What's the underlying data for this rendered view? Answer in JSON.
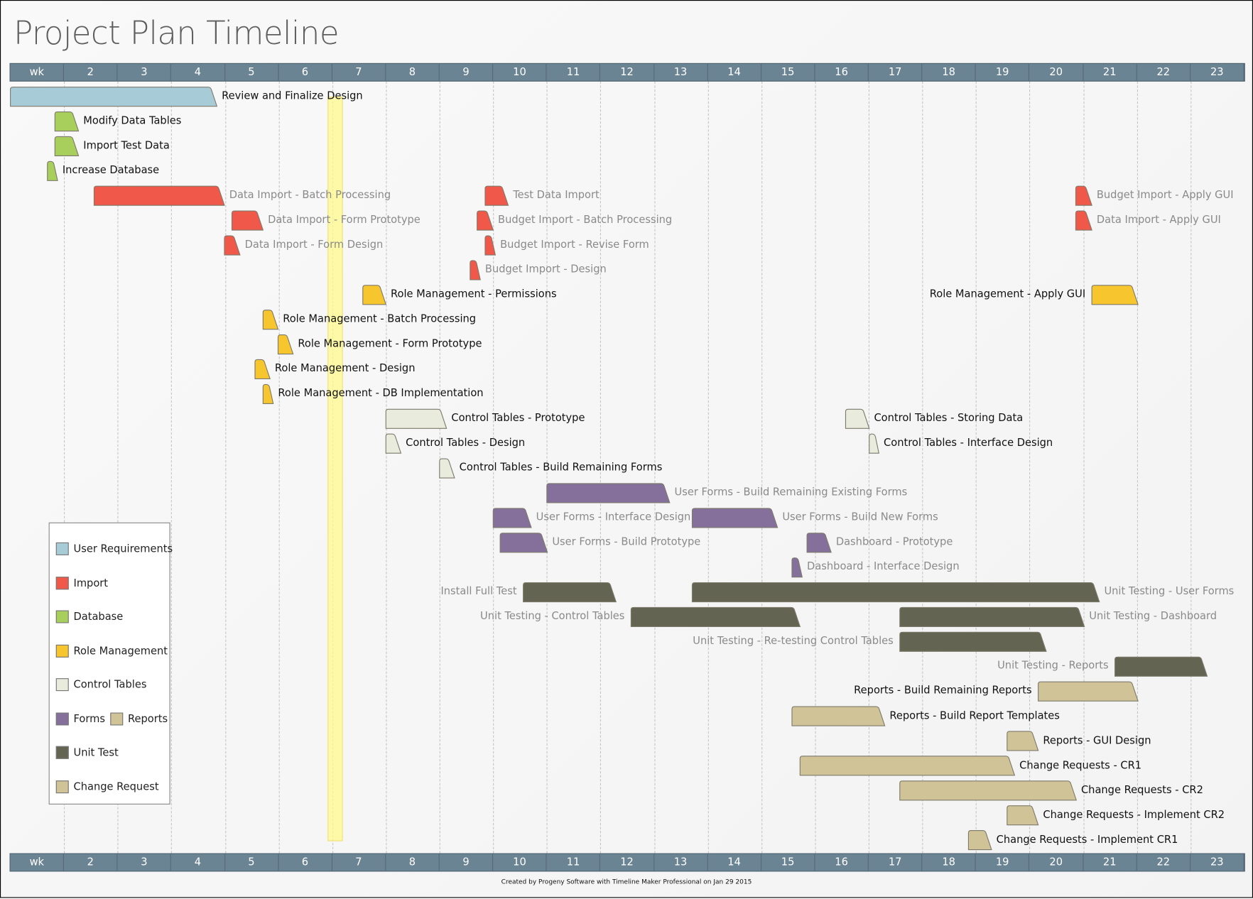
{
  "title": "Project Plan Timeline",
  "footer": "Created by Progeny Software with Timeline Maker Professional on Jan 29 2015",
  "chart_data": {
    "type": "gantt",
    "title": "Project Plan Timeline",
    "x_unit": "week",
    "x_ticks": [
      "wk",
      "2",
      "3",
      "4",
      "5",
      "6",
      "7",
      "8",
      "9",
      "10",
      "11",
      "12",
      "13",
      "14",
      "15",
      "16",
      "17",
      "18",
      "19",
      "20",
      "21",
      "22",
      "23"
    ],
    "xlim": [
      1,
      24
    ],
    "grid": true,
    "highlight_week": [
      6.92,
      7.19
    ],
    "categories": {
      "User Requirements": "#a8cbd8",
      "Import": "#f0584a",
      "Database": "#a8cf5c",
      "Role Management": "#f7c52e",
      "Control Tables": "#e9ebdd",
      "Forms": "#84709a",
      "Reports": "#cfc397",
      "Unit Test": "#636552",
      "Change Request": "#cfc397"
    },
    "tasks": [
      {
        "label": "Review and Finalize Design",
        "cat": "User Requirements",
        "row": 0,
        "start": 1.0,
        "end": 4.85,
        "side": "right",
        "muted": false
      },
      {
        "label": "Modify Data Tables",
        "cat": "Database",
        "row": 1,
        "start": 1.83,
        "end": 2.27,
        "side": "right",
        "muted": false
      },
      {
        "label": "Import Test Data",
        "cat": "Database",
        "row": 2,
        "start": 1.83,
        "end": 2.27,
        "side": "right",
        "muted": false
      },
      {
        "label": "Increase Database",
        "cat": "Database",
        "row": 3,
        "start": 1.69,
        "end": 1.88,
        "side": "right",
        "muted": false
      },
      {
        "label": "Data Import - Batch Processing",
        "cat": "Import",
        "row": 4,
        "start": 2.56,
        "end": 4.99,
        "side": "right",
        "muted": true
      },
      {
        "label": "Test Data Import",
        "cat": "Import",
        "row": 4,
        "start": 9.85,
        "end": 10.28,
        "side": "right",
        "muted": true
      },
      {
        "label": "Budget Import - Apply GUI",
        "cat": "Import",
        "row": 4,
        "start": 20.86,
        "end": 21.16,
        "side": "right",
        "muted": true
      },
      {
        "label": "Data Import - Form Prototype",
        "cat": "Import",
        "row": 5,
        "start": 5.13,
        "end": 5.71,
        "side": "right",
        "muted": true
      },
      {
        "label": "Budget Import  - Batch Processing",
        "cat": "Import",
        "row": 5,
        "start": 9.7,
        "end": 10.0,
        "side": "right",
        "muted": true
      },
      {
        "label": "Data Import - Apply GUI",
        "cat": "Import",
        "row": 5,
        "start": 20.86,
        "end": 21.16,
        "side": "right",
        "muted": true
      },
      {
        "label": "Data Import - Form Design",
        "cat": "Import",
        "row": 6,
        "start": 4.99,
        "end": 5.28,
        "side": "right",
        "muted": true
      },
      {
        "label": "Budget Import - Revise Form",
        "cat": "Import",
        "row": 6,
        "start": 9.85,
        "end": 10.04,
        "side": "right",
        "muted": true
      },
      {
        "label": "Budget Import - Design",
        "cat": "Import",
        "row": 7,
        "start": 9.57,
        "end": 9.76,
        "side": "right",
        "muted": true
      },
      {
        "label": "Role Management - Permissions",
        "cat": "Role Management",
        "row": 8,
        "start": 7.57,
        "end": 8.0,
        "side": "right",
        "muted": false
      },
      {
        "label": "Role Management - Apply GUI",
        "cat": "Role Management",
        "row": 8,
        "start": 21.16,
        "end": 22.02,
        "side": "left",
        "muted": false
      },
      {
        "label": "Role Management - Batch Processing",
        "cat": "Role Management",
        "row": 9,
        "start": 5.71,
        "end": 5.99,
        "side": "right",
        "muted": false
      },
      {
        "label": "Role Management - Form Prototype",
        "cat": "Role Management",
        "row": 10,
        "start": 5.99,
        "end": 6.27,
        "side": "right",
        "muted": false
      },
      {
        "label": "Role Management - Design",
        "cat": "Role Management",
        "row": 11,
        "start": 5.56,
        "end": 5.84,
        "side": "right",
        "muted": false
      },
      {
        "label": "Role Management - DB Implementation",
        "cat": "Role Management",
        "row": 12,
        "start": 5.71,
        "end": 5.9,
        "side": "right",
        "muted": false
      },
      {
        "label": "Control Tables - Prototype",
        "cat": "Control Tables",
        "row": 13,
        "start": 8.0,
        "end": 9.13,
        "side": "right",
        "muted": false
      },
      {
        "label": "Control Tables - Storing Data",
        "cat": "Control Tables",
        "row": 13,
        "start": 16.57,
        "end": 17.01,
        "side": "right",
        "muted": false
      },
      {
        "label": "Control Tables - Design",
        "cat": "Control Tables",
        "row": 14,
        "start": 8.0,
        "end": 8.28,
        "side": "right",
        "muted": false
      },
      {
        "label": "Control Tables - Interface Design",
        "cat": "Control Tables",
        "row": 14,
        "start": 17.01,
        "end": 17.19,
        "side": "right",
        "muted": false
      },
      {
        "label": "Control Tables - Build Remaining Forms",
        "cat": "Control Tables",
        "row": 15,
        "start": 9.0,
        "end": 9.28,
        "side": "right",
        "muted": false
      },
      {
        "label": "User Forms - Build Remaining Existing Forms",
        "cat": "Forms",
        "row": 16,
        "start": 11.0,
        "end": 13.29,
        "side": "right",
        "muted": true
      },
      {
        "label": "User Forms - Interface Design",
        "cat": "Forms",
        "row": 17,
        "start": 10.0,
        "end": 10.71,
        "side": "right",
        "muted": true
      },
      {
        "label": "User Forms - Build New Forms",
        "cat": "Forms",
        "row": 17,
        "start": 13.71,
        "end": 15.3,
        "side": "right",
        "muted": true
      },
      {
        "label": "User Forms - Build Prototype",
        "cat": "Forms",
        "row": 18,
        "start": 10.13,
        "end": 11.01,
        "side": "right",
        "muted": true
      },
      {
        "label": "Dashboard - Prototype",
        "cat": "Forms",
        "row": 18,
        "start": 15.85,
        "end": 16.3,
        "side": "right",
        "muted": true
      },
      {
        "label": "Dashboard - Interface Design",
        "cat": "Forms",
        "row": 19,
        "start": 15.57,
        "end": 15.76,
        "side": "right",
        "muted": true
      },
      {
        "label": "Install Full Test",
        "cat": "Unit Test",
        "row": 20,
        "start": 10.56,
        "end": 12.29,
        "side": "left",
        "muted": true
      },
      {
        "label": "Unit Testing - User Forms",
        "cat": "Unit Test",
        "row": 20,
        "start": 13.71,
        "end": 21.3,
        "side": "right",
        "muted": true
      },
      {
        "label": "Unit Testing - Control Tables",
        "cat": "Unit Test",
        "row": 21,
        "start": 12.57,
        "end": 15.72,
        "side": "left",
        "muted": true
      },
      {
        "label": "Unit Testing - Dashboard",
        "cat": "Unit Test",
        "row": 21,
        "start": 17.58,
        "end": 21.02,
        "side": "right",
        "muted": true
      },
      {
        "label": "Unit Testing - Re-testing Control Tables",
        "cat": "Unit Test",
        "row": 22,
        "start": 17.58,
        "end": 20.31,
        "side": "left",
        "muted": true
      },
      {
        "label": "Unit Testing - Reports",
        "cat": "Unit Test",
        "row": 23,
        "start": 21.59,
        "end": 23.31,
        "side": "left",
        "muted": true
      },
      {
        "label": "Reports - Build Remaining Reports",
        "cat": "Reports",
        "row": 24,
        "start": 20.16,
        "end": 22.02,
        "side": "left",
        "muted": false
      },
      {
        "label": "Reports - Build Report Templates",
        "cat": "Reports",
        "row": 25,
        "start": 15.57,
        "end": 17.3,
        "side": "right",
        "muted": false
      },
      {
        "label": "Reports - GUI Design",
        "cat": "Reports",
        "row": 26,
        "start": 19.58,
        "end": 20.16,
        "side": "right",
        "muted": false
      },
      {
        "label": "Change Requests - CR1",
        "cat": "Change Request",
        "row": 27,
        "start": 15.72,
        "end": 19.72,
        "side": "right",
        "muted": false
      },
      {
        "label": "Change Requests - CR2",
        "cat": "Change Request",
        "row": 28,
        "start": 17.58,
        "end": 20.87,
        "side": "right",
        "muted": false
      },
      {
        "label": "Change Requests - Implement CR2",
        "cat": "Change Request",
        "row": 29,
        "start": 19.58,
        "end": 20.16,
        "side": "right",
        "muted": false
      },
      {
        "label": "Change Requests - Implement CR1",
        "cat": "Change Request",
        "row": 30,
        "start": 18.86,
        "end": 19.29,
        "side": "right",
        "muted": false
      }
    ],
    "legend": [
      {
        "label": "User Requirements",
        "color": "#a8cbd8"
      },
      {
        "label": "Import",
        "color": "#f0584a"
      },
      {
        "label": "Database",
        "color": "#a8cf5c"
      },
      {
        "label": "Role Management",
        "color": "#f7c52e"
      },
      {
        "label": "Control Tables",
        "color": "#e9ebdd"
      },
      {
        "label": "Forms",
        "color": "#84709a"
      },
      {
        "label": "Reports",
        "color": "#cfc397"
      },
      {
        "label": "Unit Test",
        "color": "#636552"
      },
      {
        "label": "Change Request",
        "color": "#cfc397"
      }
    ],
    "legend_placement": "bottom-left"
  }
}
